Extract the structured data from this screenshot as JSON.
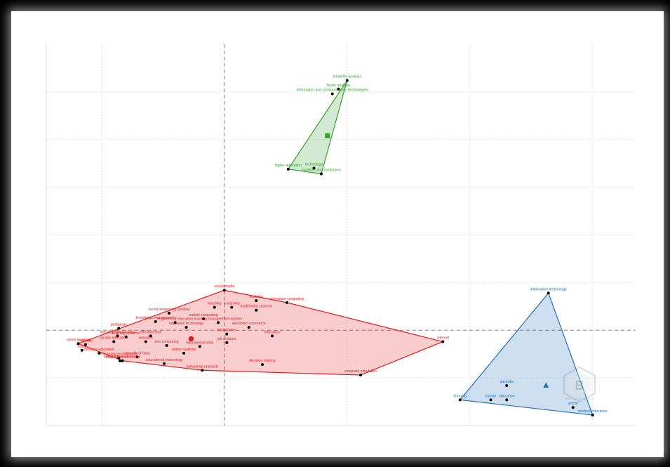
{
  "chart_data": {
    "type": "scatter",
    "title": "",
    "xlabel": "",
    "ylabel": "",
    "grid": true,
    "xlim": [
      -1.45,
      3.35
    ],
    "ylim": [
      -1.0,
      3.0
    ],
    "origin_lines": [
      0,
      0
    ],
    "clusters": [
      {
        "name": "",
        "color": "#e31a1c",
        "centroid_marker": "circle",
        "centroid": [
          -0.27,
          -0.09
        ],
        "hull": [
          [
            -1.19,
            -0.14
          ],
          [
            0.0,
            0.42
          ],
          [
            0.51,
            0.29
          ],
          [
            1.78,
            -0.12
          ],
          [
            1.11,
            -0.47
          ],
          [
            -0.18,
            -0.42
          ],
          [
            -0.83,
            -0.32
          ]
        ],
        "points": [
          {
            "label": "online learning",
            "x": -1.19,
            "y": -0.14
          },
          {
            "label": "social media",
            "x": 0.0,
            "y": 0.42
          },
          {
            "label": "education computing",
            "x": 0.51,
            "y": 0.29
          },
          {
            "label": "internet",
            "x": 1.78,
            "y": -0.12
          },
          {
            "label": "computer simulation",
            "x": 1.11,
            "y": -0.47
          },
          {
            "label": "behavioral research",
            "x": -0.18,
            "y": -0.42
          },
          {
            "label": "competitive advantage",
            "x": -0.83,
            "y": -0.32
          },
          {
            "label": "students",
            "x": 0.26,
            "y": 0.31
          },
          {
            "label": "multimedia systems",
            "x": 0.26,
            "y": 0.21
          },
          {
            "label": "teaching",
            "x": -0.08,
            "y": 0.24
          },
          {
            "label": "e-learning",
            "x": 0.06,
            "y": 0.24
          },
          {
            "label": "social networking (online)",
            "x": -0.45,
            "y": 0.18
          },
          {
            "label": "mobile computing",
            "x": -0.17,
            "y": 0.12
          },
          {
            "label": "knowledge management",
            "x": -0.56,
            "y": 0.09
          },
          {
            "label": "engineering education",
            "x": -0.4,
            "y": 0.08
          },
          {
            "label": "learning management system",
            "x": -0.05,
            "y": 0.08
          },
          {
            "label": "electronic commerce",
            "x": 0.2,
            "y": 0.03
          },
          {
            "label": "education technology",
            "x": -0.31,
            "y": 0.03
          },
          {
            "label": "pedagogy",
            "x": -0.86,
            "y": 0.02
          },
          {
            "label": "learning effectiveness",
            "x": -0.87,
            "y": -0.06
          },
          {
            "label": "learning systems",
            "x": -0.8,
            "y": -0.07
          },
          {
            "label": "effectiveness",
            "x": -0.6,
            "y": -0.06
          },
          {
            "label": "education",
            "x": 0.39,
            "y": -0.06
          },
          {
            "label": "laboratories",
            "x": 0.02,
            "y": -0.04
          },
          {
            "label": "on-line education",
            "x": -0.9,
            "y": -0.12
          },
          {
            "label": "websites",
            "x": -0.64,
            "y": -0.12
          },
          {
            "label": "job analysis",
            "x": 0.02,
            "y": -0.13
          },
          {
            "label": "mooc",
            "x": -1.16,
            "y": -0.21
          },
          {
            "label": "curricula",
            "x": -1.13,
            "y": -0.15
          },
          {
            "label": "arts computing",
            "x": -0.47,
            "y": -0.16
          },
          {
            "label": "educational tools",
            "x": -0.2,
            "y": -0.17
          },
          {
            "label": "distance education",
            "x": -1.02,
            "y": -0.24
          },
          {
            "label": "online systems",
            "x": -0.33,
            "y": -0.24
          },
          {
            "label": "security of data",
            "x": -0.71,
            "y": -0.28
          },
          {
            "label": "e-learning environment",
            "x": -0.86,
            "y": -0.29
          },
          {
            "label": "decision making",
            "x": 0.31,
            "y": -0.36
          },
          {
            "label": "mobile applications",
            "x": -0.85,
            "y": -0.32
          },
          {
            "label": "educational technology",
            "x": -0.49,
            "y": -0.35
          }
        ]
      },
      {
        "name": "",
        "color": "#33a02c",
        "centroid_marker": "square",
        "centroid": [
          0.84,
          2.04
        ],
        "hull": [
          [
            1.0,
            2.62
          ],
          [
            0.52,
            1.69
          ],
          [
            0.79,
            1.64
          ]
        ],
        "points": [
          {
            "label": "reliability analysis",
            "x": 1.0,
            "y": 2.62
          },
          {
            "label": "factor analysis",
            "x": 0.93,
            "y": 2.53
          },
          {
            "label": "information and communication technologies",
            "x": 0.88,
            "y": 2.48
          },
          {
            "label": "higher education",
            "x": 0.52,
            "y": 1.69
          },
          {
            "label": "technology",
            "x": 0.73,
            "y": 1.7
          },
          {
            "label": "societies and institutions",
            "x": 0.79,
            "y": 1.64
          }
        ]
      },
      {
        "name": "",
        "color": "#2171b5",
        "centroid_marker": "triangle",
        "centroid": [
          2.62,
          -0.58
        ],
        "hull": [
          [
            2.64,
            0.39
          ],
          [
            1.92,
            -0.73
          ],
          [
            3.0,
            -0.89
          ]
        ],
        "points": [
          {
            "label": "information technology",
            "x": 2.64,
            "y": 0.39
          },
          {
            "label": "learning",
            "x": 1.92,
            "y": -0.73
          },
          {
            "label": "human",
            "x": 2.17,
            "y": -0.73
          },
          {
            "label": "education",
            "x": 2.3,
            "y": -0.73
          },
          {
            "label": "australia",
            "x": 2.3,
            "y": -0.58
          },
          {
            "label": "article",
            "x": 2.84,
            "y": -0.81
          },
          {
            "label": "medical education",
            "x": 3.0,
            "y": -0.89
          }
        ]
      }
    ]
  },
  "watermark": {
    "icon": "bibliometrix-logo-icon",
    "text": "Bibliometrix Science"
  }
}
